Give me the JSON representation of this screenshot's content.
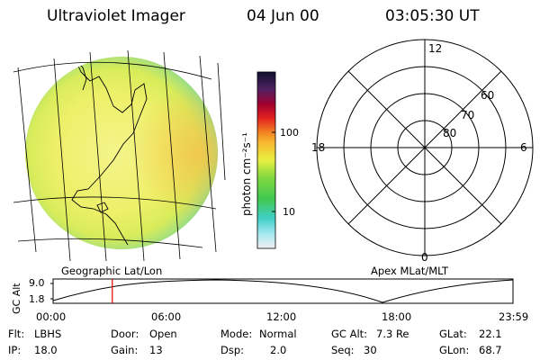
{
  "header": {
    "title": "Ultraviolet Imager",
    "date": "04 Jun 00",
    "time": "03:05:30 UT"
  },
  "colorbar": {
    "unit_label": "photon cm⁻²s⁻¹",
    "ticks": [
      {
        "value": 100,
        "label": "100"
      },
      {
        "value": 10,
        "label": "10"
      }
    ]
  },
  "panels": {
    "geo_label": "Geographic Lat/Lon",
    "polar_label": "Apex MLat/MLT"
  },
  "polar": {
    "mlt_labels": [
      {
        "pos": "top",
        "label": "12"
      },
      {
        "pos": "left",
        "label": "18"
      },
      {
        "pos": "right",
        "label": "6"
      },
      {
        "pos": "bottom",
        "label": "0"
      }
    ],
    "lat_labels": [
      "60",
      "70",
      "80"
    ]
  },
  "timeline": {
    "ylabel": "GC Alt",
    "y_ticks": [
      "9.0",
      "1.8"
    ],
    "x_ticks": [
      "00:00",
      "06:00",
      "12:00",
      "18:00",
      "23:59"
    ],
    "current_time_hours": 3.09
  },
  "info": {
    "filter": {
      "label": "Flt:",
      "value": "LBHS"
    },
    "ip": {
      "label": "IP:",
      "value": "18.0"
    },
    "door": {
      "label": "Door:",
      "value": "Open"
    },
    "gain": {
      "label": "Gain:",
      "value": "13"
    },
    "mode": {
      "label": "Mode:",
      "value": "Normal"
    },
    "dsp": {
      "label": "Dsp:",
      "value": "2.0"
    },
    "gc_alt": {
      "label": "GC Alt:",
      "value": "7.3 Re"
    },
    "seq": {
      "label": "Seq:",
      "value": "30"
    },
    "glat": {
      "label": "GLat:",
      "value": "22.1"
    },
    "glon": {
      "label": "GLon:",
      "value": "68.7"
    }
  }
}
